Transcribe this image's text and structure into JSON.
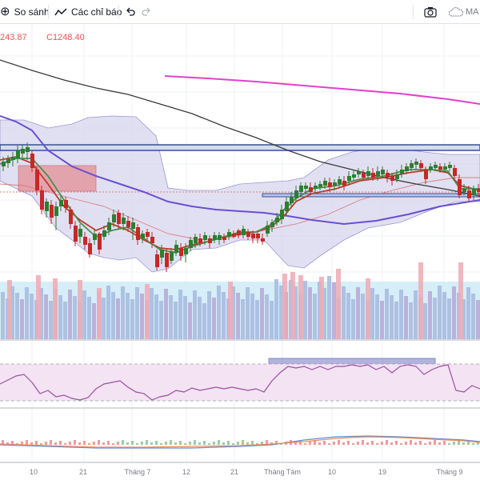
{
  "toolbar": {
    "compare_label": "So sánh",
    "indicators_label": "Các chỉ báo",
    "ma_label": "MA"
  },
  "legend": {
    "low_text": "243.87",
    "close_text": "C1248.40"
  },
  "xaxis": {
    "labels": [
      "10",
      "21",
      "Tháng 7",
      "12",
      "21",
      "Tháng Tám",
      "10",
      "19",
      "Tháng 9"
    ]
  },
  "colors": {
    "up": "#2e7d32",
    "down": "#c62828",
    "bb_fill": "#d8d6ee",
    "ma_slow": "#3a3a3a",
    "ma_purple": "#6a4fd1",
    "ma_magenta": "#e040d0",
    "ema_green": "#4e8d4b",
    "ema_red": "#c0392b",
    "rsi_line": "#9a4fa0",
    "rsi_fill": "#f3e3f3"
  }
}
